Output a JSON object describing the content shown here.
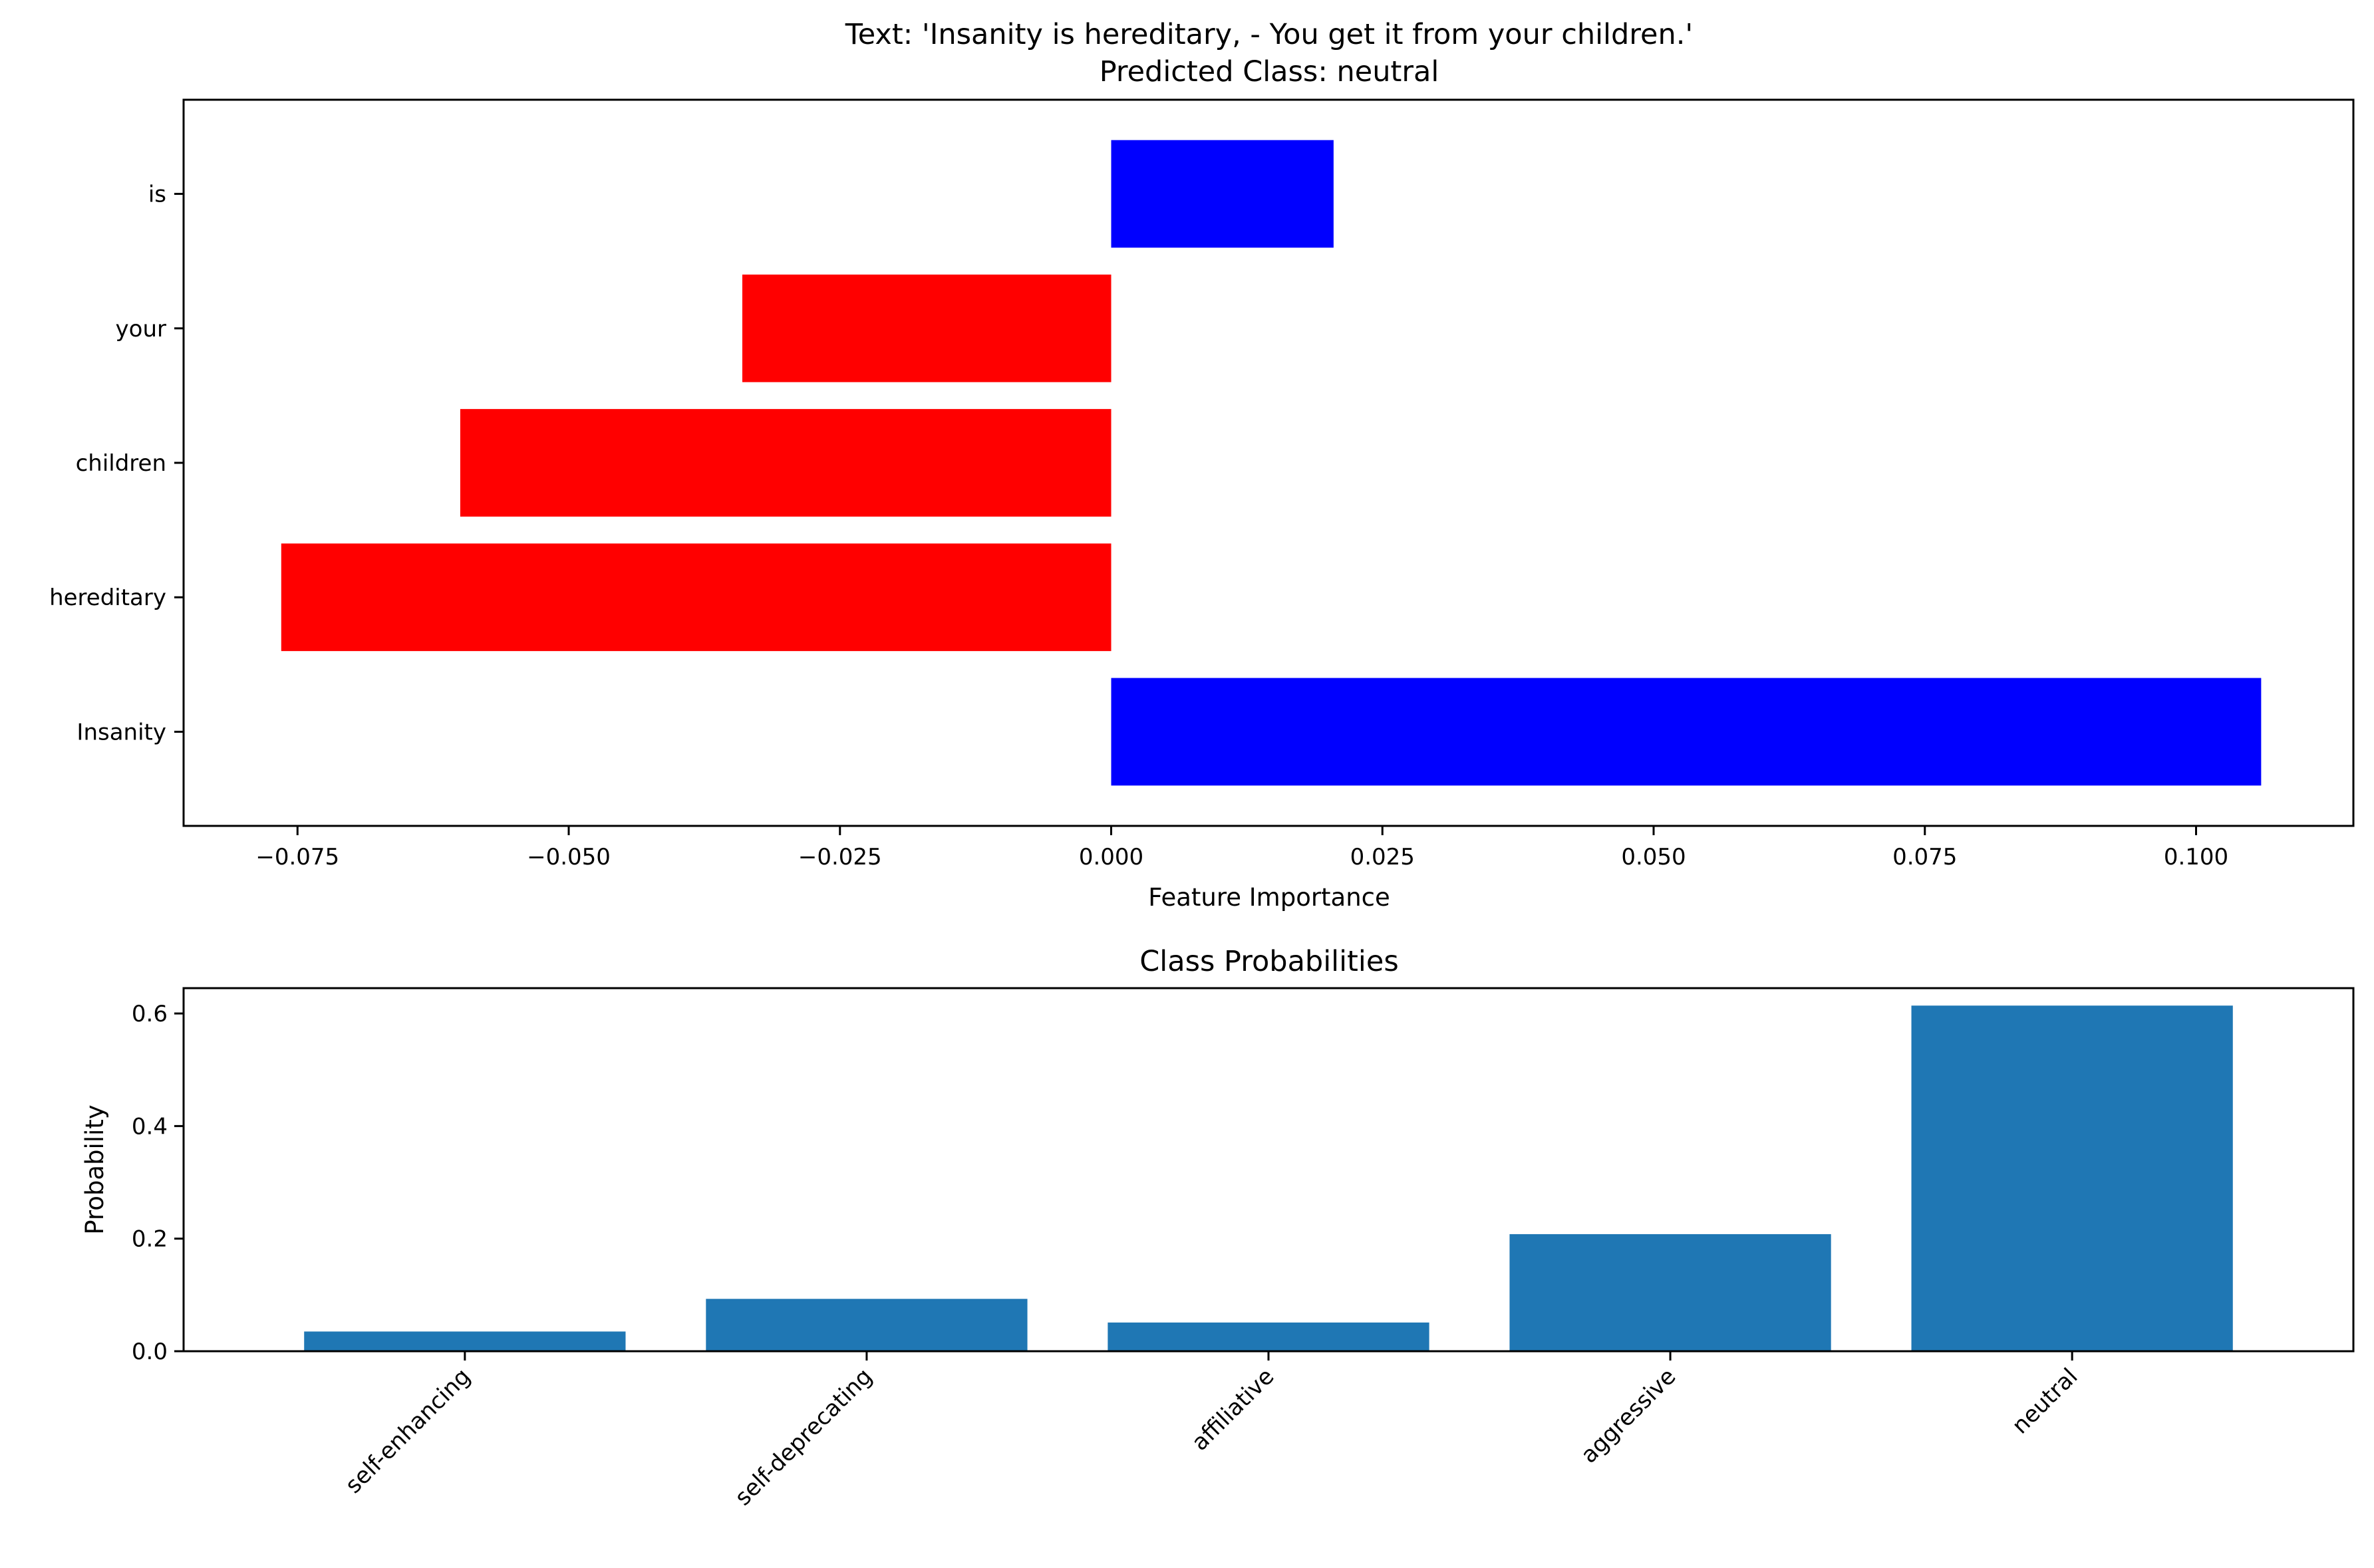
{
  "chart_data": [
    {
      "type": "bar",
      "orientation": "horizontal",
      "title": [
        "Text: 'Insanity is hereditary, - You get it from your children.'",
        "Predicted Class: neutral"
      ],
      "xlabel": "Feature Importance",
      "ylabel": "",
      "categories": [
        "Insanity",
        "hereditary",
        "children",
        "your",
        "is"
      ],
      "values": [
        0.106,
        -0.0765,
        -0.06,
        -0.034,
        0.0205
      ],
      "xlim": [
        -0.0855,
        0.1145
      ],
      "xticks": [
        -0.075,
        -0.05,
        -0.025,
        0.0,
        0.025,
        0.05,
        0.075,
        0.1
      ],
      "xtick_labels": [
        "−0.075",
        "−0.050",
        "−0.025",
        "0.000",
        "0.025",
        "0.050",
        "0.075",
        "0.100"
      ],
      "positive_color": "#0000ff",
      "negative_color": "#ff0000",
      "grid": false
    },
    {
      "type": "bar",
      "title": "Class Probabilities",
      "xlabel": "",
      "ylabel": "Probability",
      "categories": [
        "self-enhancing",
        "self-deprecating",
        "affiliative",
        "aggressive",
        "neutral"
      ],
      "values": [
        0.035,
        0.093,
        0.051,
        0.208,
        0.614
      ],
      "ylim": [
        0,
        0.645
      ],
      "yticks": [
        0.0,
        0.2,
        0.4,
        0.6
      ],
      "ytick_labels": [
        "0.0",
        "0.2",
        "0.4",
        "0.6"
      ],
      "color": "#1f77b4",
      "grid": false
    }
  ]
}
